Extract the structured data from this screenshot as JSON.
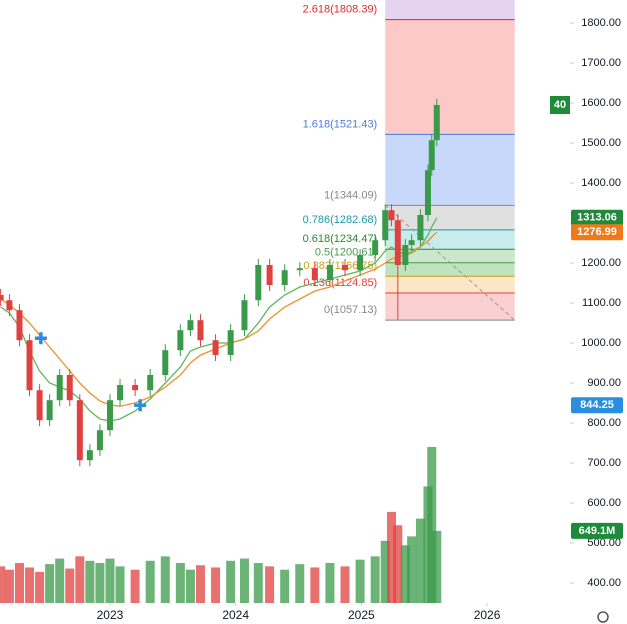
{
  "chart_data": {
    "type": "candlestick",
    "x": [
      2022.13,
      2022.2,
      2022.28,
      2022.36,
      2022.44,
      2022.52,
      2022.6,
      2022.68,
      2022.76,
      2022.84,
      2022.92,
      2023.0,
      2023.08,
      2023.2,
      2023.32,
      2023.44,
      2023.56,
      2023.64,
      2023.72,
      2023.84,
      2023.96,
      2024.07,
      2024.18,
      2024.27,
      2024.39,
      2024.51,
      2024.63,
      2024.75,
      2024.87,
      2024.99,
      2025.11,
      2025.19,
      2025.24,
      2025.29,
      2025.35,
      2025.4,
      2025.47,
      2025.53,
      2025.56,
      2025.6
    ],
    "open": [
      1120,
      1107,
      1082,
      1007,
      882,
      807,
      857,
      920,
      857,
      707,
      732,
      782,
      857,
      895,
      882,
      920,
      982,
      1032,
      1057,
      1007,
      970,
      1032,
      1107,
      1195,
      1145,
      1182,
      1187,
      1157,
      1195,
      1182,
      1220,
      1257,
      1332,
      1307,
      1195,
      1245,
      1257,
      1320,
      1432,
      1507
    ],
    "high": [
      1135,
      1122,
      1097,
      1022,
      897,
      872,
      935,
      935,
      872,
      747,
      797,
      872,
      910,
      910,
      935,
      997,
      1047,
      1072,
      1072,
      1022,
      1047,
      1122,
      1210,
      1210,
      1197,
      1202,
      1202,
      1210,
      1210,
      1235,
      1272,
      1347,
      1347,
      1322,
      1260,
      1272,
      1335,
      1447,
      1522,
      1610
    ],
    "low": [
      1092,
      1067,
      992,
      867,
      792,
      792,
      842,
      842,
      692,
      692,
      717,
      767,
      842,
      867,
      867,
      905,
      967,
      1017,
      992,
      955,
      955,
      1017,
      1092,
      1130,
      1130,
      1167,
      1142,
      1142,
      1167,
      1167,
      1205,
      1242,
      1292,
      1057,
      1180,
      1230,
      1242,
      1305,
      1417,
      1492
    ],
    "close": [
      1107,
      1082,
      1007,
      882,
      807,
      857,
      920,
      857,
      707,
      732,
      782,
      857,
      895,
      882,
      920,
      982,
      1032,
      1057,
      1007,
      970,
      1032,
      1107,
      1195,
      1145,
      1182,
      1187,
      1157,
      1195,
      1182,
      1220,
      1257,
      1332,
      1307,
      1195,
      1245,
      1257,
      1320,
      1432,
      1507,
      1595
    ],
    "volume": [
      330,
      300,
      360,
      320,
      280,
      350,
      400,
      310,
      420,
      380,
      360,
      400,
      330,
      300,
      380,
      420,
      360,
      300,
      340,
      320,
      380,
      400,
      360,
      330,
      300,
      350,
      320,
      360,
      330,
      390,
      420,
      560,
      820,
      700,
      520,
      600,
      760,
      1050,
      1405,
      649.1
    ],
    "up_color": "#3a9a4a",
    "down_color": "#e0403f",
    "series": [
      {
        "color": "#5cb85c",
        "values": [
          1090,
          1075,
          1040,
          980,
          930,
          900,
          890,
          880,
          860,
          830,
          810,
          805,
          810,
          830,
          860,
          900,
          940,
          980,
          990,
          1000,
          1000,
          1010,
          1050,
          1090,
          1120,
          1140,
          1150,
          1160,
          1170,
          1180,
          1200,
          1230,
          1240,
          1230,
          1220,
          1225,
          1240,
          1270,
          1290,
          1313.06
        ]
      },
      {
        "color": "#f0902a",
        "values": [
          1110,
          1095,
          1075,
          1050,
          1020,
          990,
          960,
          930,
          900,
          875,
          855,
          845,
          842,
          850,
          865,
          890,
          920,
          950,
          970,
          985,
          1000,
          1010,
          1030,
          1060,
          1090,
          1110,
          1130,
          1140,
          1155,
          1170,
          1185,
          1200,
          1210,
          1215,
          1220,
          1230,
          1240,
          1255,
          1265,
          1276.99
        ]
      }
    ],
    "xlim": [
      2022.125,
      2026.66
    ],
    "xticks": [
      2023,
      2024,
      2025,
      2026
    ],
    "ylim": [
      350,
      1857.5
    ],
    "yticks": [
      {
        "value": 400,
        "label": "400.00"
      },
      {
        "value": 500,
        "label": "500.00"
      },
      {
        "value": 600,
        "label": "600.00"
      },
      {
        "value": 700,
        "label": "700.00"
      },
      {
        "value": 800,
        "label": "800.00"
      },
      {
        "value": 900,
        "label": "900.00"
      },
      {
        "value": 1000,
        "label": "1000.00"
      },
      {
        "value": 1100,
        "label": "1100.00"
      },
      {
        "value": 1200,
        "label": "1200.00"
      },
      {
        "value": 1300,
        "label": "1300.00"
      },
      {
        "value": 1400,
        "label": "1400.00"
      },
      {
        "value": 1500,
        "label": "1500.00"
      },
      {
        "value": 1600,
        "label": "1600.00"
      },
      {
        "value": 1700,
        "label": "1700.00"
      },
      {
        "value": 1800,
        "label": "1800.00"
      }
    ],
    "y2lim": [
      0,
      5430
    ],
    "fib": {
      "x": [
        2025.19,
        2026.22
      ],
      "top_fill": "#e4d4f2",
      "levels": [
        {
          "value": 1808.39,
          "label": "2.618(1808.39)",
          "color": "#e02a2a",
          "fill": "#fcc8c8"
        },
        {
          "value": 1521.43,
          "label": "1.618(1521.43)",
          "color": "#4a7ce0",
          "fill": "#c8d8fa"
        },
        {
          "value": 1344.09,
          "label": "1(1344.09)",
          "color": "#888888",
          "fill": "#e0e0e0"
        },
        {
          "value": 1282.68,
          "label": "0.786(1282.68)",
          "color": "#1a9aa8",
          "fill": "#c8ecec"
        },
        {
          "value": 1234.47,
          "label": "0.618(1234.47)",
          "color": "#2a8a2a",
          "fill": "#cce8cc"
        },
        {
          "value": 1200.61,
          "label": "0.5(1200.61)",
          "color": "#4a9a4a",
          "fill": "#bfe2bf"
        },
        {
          "value": 1166.75,
          "label": "0.382(1166.75)",
          "color": "#c8a020",
          "fill": "#fbe6c8"
        },
        {
          "value": 1124.85,
          "label": "0.236(1124.85)",
          "color": "#e0403f",
          "fill": "#fad0d0"
        },
        {
          "value": 1057.13,
          "label": "0(1057.13)",
          "color": "#888888"
        }
      ]
    },
    "price_labels": [
      {
        "value": 1313.06,
        "color": "#1e8a3a"
      },
      {
        "value": 1276.99,
        "color": "#f07a1a"
      },
      {
        "value": 844.25,
        "color": "#2a8ee0"
      },
      {
        "value": 649.1,
        "label": "649.1M",
        "color": "#1e8a3a",
        "axis": "y2"
      }
    ],
    "markers": [
      {
        "x": 2022.45,
        "y": 1012,
        "color": "#2a8ee0"
      },
      {
        "x": 2023.24,
        "y": 844.25,
        "color": "#2a8ee0"
      }
    ],
    "countdown": "40"
  }
}
